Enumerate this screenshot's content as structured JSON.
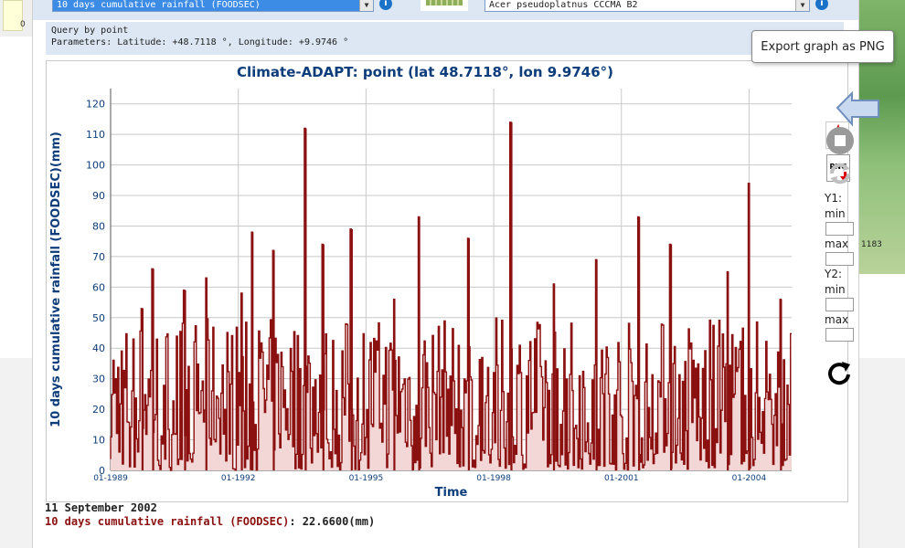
{
  "top_controls": {
    "variable_select": "10 days cumulative rainfall (FOODSEC)",
    "species_select": "Acer pseudoplatnus CCCMA B2"
  },
  "query": {
    "line1": "Query by point",
    "line2": "Parameters: Latitude: +48.7118 °, Longitude: +9.9746 °"
  },
  "background": {
    "left_tick": "0",
    "map_label": "1183"
  },
  "chart_data": {
    "type": "line",
    "title": "Climate-ADAPT: point (lat 48.7118°, lon 9.9746°)",
    "xlabel": "Time",
    "ylabel": "10 days cumulative rainfall (FOODSEC)(mm)",
    "ylim": [
      0,
      125
    ],
    "yticks": [
      "0",
      "10",
      "20",
      "30",
      "40",
      "50",
      "60",
      "70",
      "80",
      "90",
      "100",
      "110",
      "120"
    ],
    "xlim": [
      "1989-01",
      "2004-12"
    ],
    "xticks": [
      "01-1989",
      "01-1992",
      "01-1995",
      "01-1998",
      "01-2001",
      "01-2004"
    ],
    "series_color": "#8b1010",
    "fill_color": "#f3d6d6",
    "grid": true,
    "peaks": [
      {
        "x": "1989-10",
        "y": 53
      },
      {
        "x": "1990-01",
        "y": 66
      },
      {
        "x": "1990-10",
        "y": 59
      },
      {
        "x": "1991-04",
        "y": 63
      },
      {
        "x": "1992-02",
        "y": 58
      },
      {
        "x": "1992-05",
        "y": 78
      },
      {
        "x": "1992-11",
        "y": 72
      },
      {
        "x": "1993-08",
        "y": 112
      },
      {
        "x": "1994-01",
        "y": 74
      },
      {
        "x": "1994-09",
        "y": 79
      },
      {
        "x": "1995-09",
        "y": 56
      },
      {
        "x": "1996-04",
        "y": 83
      },
      {
        "x": "1997-06",
        "y": 76
      },
      {
        "x": "1998-06",
        "y": 114
      },
      {
        "x": "1999-06",
        "y": 61
      },
      {
        "x": "2000-06",
        "y": 69
      },
      {
        "x": "2001-06",
        "y": 83
      },
      {
        "x": "2002-03",
        "y": 74
      },
      {
        "x": "2003-07",
        "y": 65
      },
      {
        "x": "2004-01",
        "y": 94
      },
      {
        "x": "2004-10",
        "y": 56
      }
    ]
  },
  "sidebar": {
    "pdf_icon": "pdf-export-icon",
    "png_label": "PNG",
    "y1_label": "Y1:",
    "y2_label": "Y2:",
    "min_label": "min",
    "max_label": "max",
    "min_label_2": "min",
    "max_label_2": "max"
  },
  "tooltip": {
    "text": "Export graph as PNG"
  },
  "footer": {
    "date": "11 September 2002",
    "series_label": "10 days cumulative rainfall (FOODSEC)",
    "value": ": 22.6600(mm)"
  }
}
